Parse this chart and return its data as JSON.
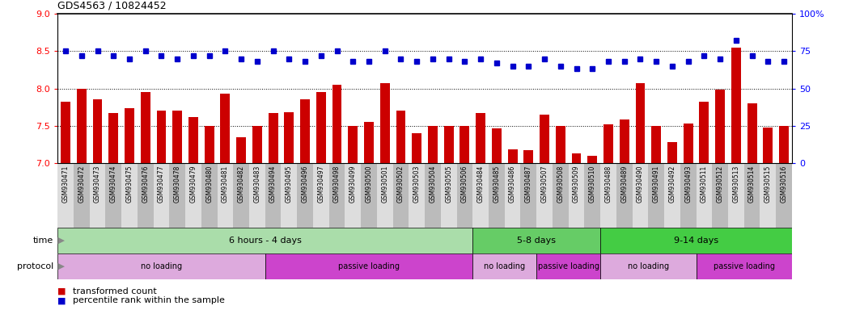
{
  "title": "GDS4563 / 10824452",
  "gsm_labels": [
    "GSM930471",
    "GSM930472",
    "GSM930473",
    "GSM930474",
    "GSM930475",
    "GSM930476",
    "GSM930477",
    "GSM930478",
    "GSM930479",
    "GSM930480",
    "GSM930481",
    "GSM930482",
    "GSM930483",
    "GSM930494",
    "GSM930495",
    "GSM930496",
    "GSM930497",
    "GSM930498",
    "GSM930499",
    "GSM930500",
    "GSM930501",
    "GSM930502",
    "GSM930503",
    "GSM930504",
    "GSM930505",
    "GSM930506",
    "GSM930484",
    "GSM930485",
    "GSM930486",
    "GSM930487",
    "GSM930507",
    "GSM930508",
    "GSM930509",
    "GSM930510",
    "GSM930488",
    "GSM930489",
    "GSM930490",
    "GSM930491",
    "GSM930492",
    "GSM930493",
    "GSM930511",
    "GSM930512",
    "GSM930513",
    "GSM930514",
    "GSM930515",
    "GSM930516"
  ],
  "bar_values": [
    7.82,
    8.0,
    7.85,
    7.67,
    7.73,
    7.95,
    7.7,
    7.7,
    7.62,
    7.5,
    7.93,
    7.35,
    7.5,
    7.67,
    7.68,
    7.85,
    7.95,
    8.05,
    7.5,
    7.55,
    8.07,
    7.7,
    7.4,
    7.5,
    7.5,
    7.5,
    7.67,
    7.47,
    7.18,
    7.17,
    7.65,
    7.5,
    7.13,
    7.1,
    7.52,
    7.58,
    8.07,
    7.5,
    7.28,
    7.53,
    7.82,
    7.98,
    8.55,
    7.8,
    7.48,
    7.5
  ],
  "dot_values": [
    75,
    72,
    75,
    72,
    70,
    75,
    72,
    70,
    72,
    72,
    75,
    70,
    68,
    75,
    70,
    68,
    72,
    75,
    68,
    68,
    75,
    70,
    68,
    70,
    70,
    68,
    70,
    67,
    65,
    65,
    70,
    65,
    63,
    63,
    68,
    68,
    70,
    68,
    65,
    68,
    72,
    70,
    82,
    72,
    68,
    68
  ],
  "ylim_left": [
    7.0,
    9.0
  ],
  "ylim_right": [
    0,
    100
  ],
  "bar_color": "#CC0000",
  "dot_color": "#0000CC",
  "time_groups": [
    {
      "label": "6 hours - 4 days",
      "start": 0,
      "end": 26,
      "color": "#AADDAA"
    },
    {
      "label": "5-8 days",
      "start": 26,
      "end": 34,
      "color": "#66CC66"
    },
    {
      "label": "9-14 days",
      "start": 34,
      "end": 46,
      "color": "#44CC44"
    }
  ],
  "protocol_groups": [
    {
      "label": "no loading",
      "start": 0,
      "end": 13,
      "color": "#DDAADD"
    },
    {
      "label": "passive loading",
      "start": 13,
      "end": 26,
      "color": "#CC44CC"
    },
    {
      "label": "no loading",
      "start": 26,
      "end": 30,
      "color": "#DDAADD"
    },
    {
      "label": "passive loading",
      "start": 30,
      "end": 34,
      "color": "#CC44CC"
    },
    {
      "label": "no loading",
      "start": 34,
      "end": 40,
      "color": "#DDAADD"
    },
    {
      "label": "passive loading",
      "start": 40,
      "end": 46,
      "color": "#CC44CC"
    }
  ],
  "xtick_bg_even": "#DDDDDD",
  "xtick_bg_odd": "#BBBBBB",
  "legend": [
    {
      "label": "transformed count",
      "color": "#CC0000"
    },
    {
      "label": "percentile rank within the sample",
      "color": "#0000CC"
    }
  ]
}
